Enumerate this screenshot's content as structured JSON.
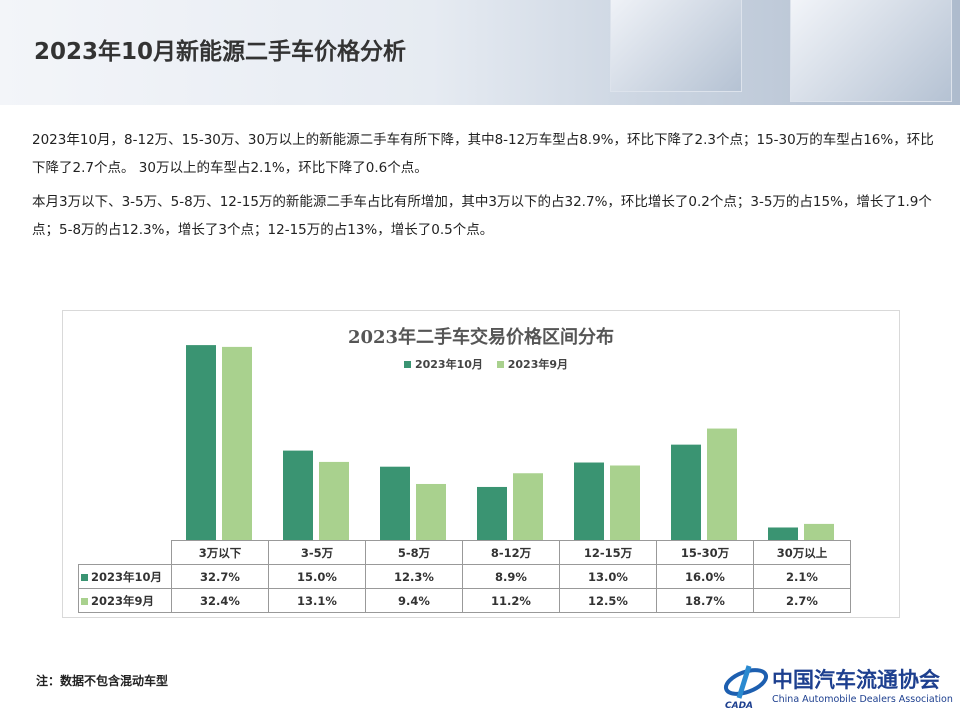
{
  "header": {
    "title": "2023年10月新能源二手车价格分析"
  },
  "body": {
    "p1": "2023年10月，8-12万、15-30万、30万以上的新能源二手车有所下降，其中8-12万车型占8.9%，环比下降了2.3个点；15-30万的车型占16%，环比下降了2.7个点。  30万以上的车型占2.1%，环比下降了0.6个点。",
    "p2": "本月3万以下、3-5万、5-8万、12-15万的新能源二手车占比有所增加，其中3万以下的占32.7%，环比增长了0.2个点；3-5万的占15%，增长了1.9个点；5-8万的占12.3%，增长了3个点；12-15万的占13%，增长了0.5个点。"
  },
  "chart_data": {
    "type": "bar",
    "title": "2023年二手车交易价格区间分布",
    "categories": [
      "3万以下",
      "3-5万",
      "5-8万",
      "8-12万",
      "12-15万",
      "15-30万",
      "30万以上"
    ],
    "series": [
      {
        "name": "2023年10月",
        "color": "#3a9472",
        "values": [
          32.7,
          15.0,
          12.3,
          8.9,
          13.0,
          16.0,
          2.1
        ],
        "labels": [
          "32.7%",
          "15.0%",
          "12.3%",
          "8.9%",
          "13.0%",
          "16.0%",
          "2.1%"
        ]
      },
      {
        "name": "2023年9月",
        "color": "#a9d18e",
        "values": [
          32.4,
          13.1,
          9.4,
          11.2,
          12.5,
          18.7,
          2.7
        ],
        "labels": [
          "32.4%",
          "13.1%",
          "9.4%",
          "11.2%",
          "12.5%",
          "18.7%",
          "2.7%"
        ]
      }
    ],
    "ylim": [
      0,
      34
    ],
    "legend": "top",
    "grid": false
  },
  "footer": {
    "note": "注：数据不包含混动车型",
    "logo_cn": "中国汽车流通协会",
    "logo_en": "China Automobile Dealers Association",
    "logo_abbr": "CADA"
  }
}
